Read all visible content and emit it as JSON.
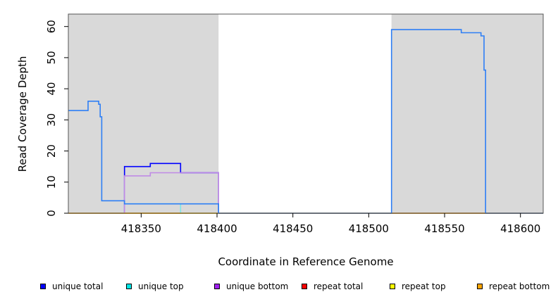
{
  "chart_data": {
    "type": "line",
    "xlabel": "Coordinate in Reference Genome",
    "ylabel": "Read Coverage Depth",
    "xlim": [
      418302,
      418615
    ],
    "ylim": [
      0,
      64
    ],
    "x_ticks": [
      418350,
      418400,
      418450,
      418500,
      418550,
      418600
    ],
    "x_tick_labels": [
      "418350",
      "418400",
      "418450",
      "418500",
      "418550",
      "418600"
    ],
    "y_ticks": [
      0,
      10,
      20,
      30,
      40,
      50,
      60
    ],
    "y_tick_labels": [
      "0",
      "10",
      "20",
      "30",
      "40",
      "50",
      "60"
    ],
    "grid": false,
    "legend_position": "bottom",
    "shaded_regions": [
      {
        "x_start": 418302,
        "x_end": 418401,
        "color": "#d9d9d9"
      },
      {
        "x_start": 418515,
        "x_end": 418615,
        "color": "#d9d9d9"
      }
    ],
    "series": [
      {
        "name": "unique total",
        "color": "#0000ff",
        "legend_color": "#0000ff",
        "x": [
          418302,
          418315,
          418315,
          418322,
          418322,
          418323,
          418323,
          418324,
          418324,
          418339,
          418339,
          418356,
          418356,
          418376,
          418376,
          418401,
          418401,
          418615
        ],
        "y": [
          0,
          0,
          0,
          0,
          0,
          0,
          0,
          0,
          0,
          0,
          15,
          15,
          16,
          16,
          13,
          13,
          0,
          0
        ]
      },
      {
        "name": "unique top",
        "color": "#7fe5e5",
        "legend_color": "#00e5e5",
        "x": [
          418302,
          418339,
          418339,
          418376,
          418376,
          418401
        ],
        "y": [
          0,
          0,
          3,
          3,
          0,
          0
        ]
      },
      {
        "name": "unique bottom",
        "color": "#c08ae6",
        "legend_color": "#a020f0",
        "x": [
          418302,
          418339,
          418339,
          418356,
          418356,
          418376,
          418376,
          418401,
          418401,
          418615
        ],
        "y": [
          0,
          0,
          12,
          12,
          13,
          13,
          13,
          13,
          0,
          0
        ]
      },
      {
        "name": "repeat total",
        "color": "#e03030",
        "legend_color": "#ff0000",
        "x": [
          418302,
          418615
        ],
        "y": [
          0,
          0
        ]
      },
      {
        "name": "repeat top",
        "color": "#e8e000",
        "legend_color": "#ffff00",
        "x": [
          418302,
          418615
        ],
        "y": [
          0,
          0
        ]
      },
      {
        "name": "repeat bottom",
        "color": "#f0a000",
        "legend_color": "#ffa500",
        "x": [
          418339,
          418376
        ],
        "y": [
          0,
          0
        ]
      },
      {
        "name": "",
        "color": "#2e7ff5",
        "legend_color": "#2e7ff5",
        "x": [
          418302,
          418315,
          418315,
          418322,
          418322,
          418323,
          418323,
          418324,
          418324,
          418339,
          418339,
          418356,
          418356,
          418376,
          418376,
          418401,
          418401,
          418515,
          418515,
          418561,
          418561,
          418574,
          418574,
          418576,
          418576,
          418577,
          418577,
          418615
        ],
        "y": [
          33,
          33,
          36,
          36,
          35,
          35,
          31,
          31,
          4,
          4,
          3,
          3,
          3,
          3,
          3,
          3,
          0,
          0,
          59,
          59,
          58,
          58,
          57,
          57,
          46,
          46,
          0,
          0
        ]
      }
    ]
  },
  "legend": [
    {
      "label": "unique total",
      "color": "#0000ff"
    },
    {
      "label": "unique top",
      "color": "#00e5e5"
    },
    {
      "label": "unique bottom",
      "color": "#a020f0"
    },
    {
      "label": "repeat total",
      "color": "#ff0000"
    },
    {
      "label": "repeat top",
      "color": "#ffff00"
    },
    {
      "label": "repeat bottom",
      "color": "#ffa500"
    }
  ]
}
